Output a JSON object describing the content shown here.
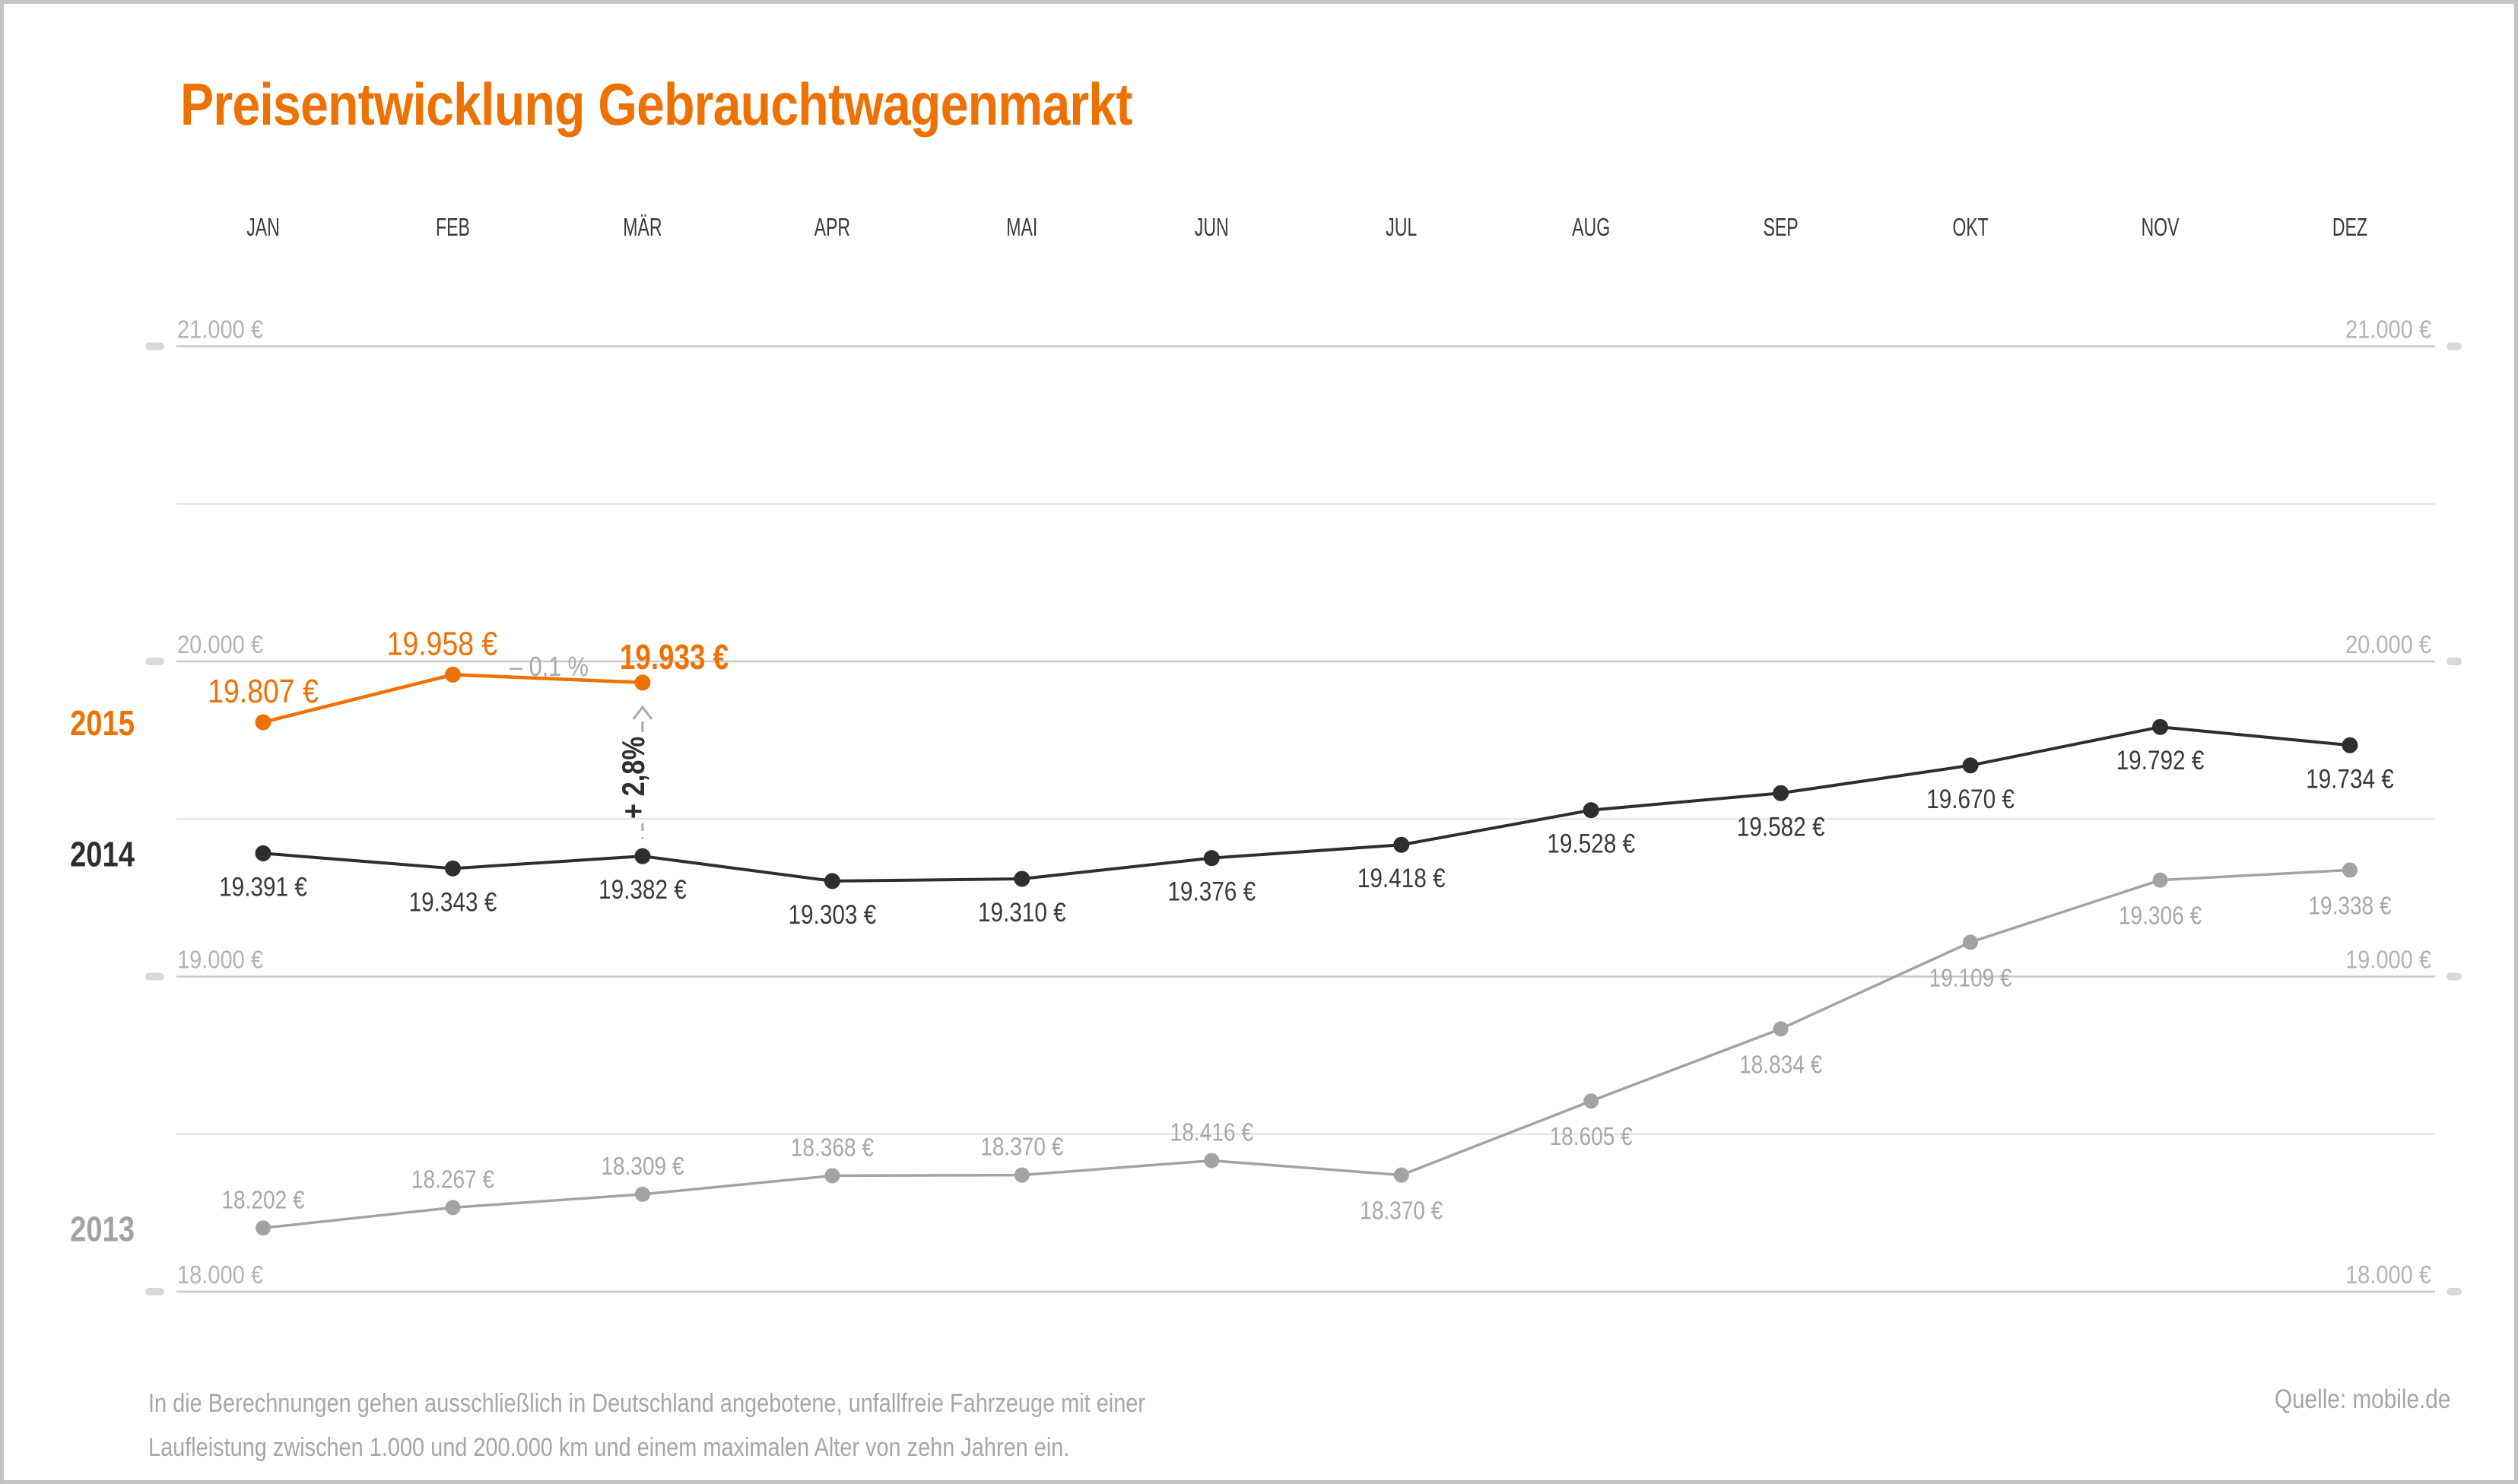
{
  "title": "Preisentwicklung Gebrauchtwagenmarkt",
  "source": "Quelle: mobile.de",
  "footnote": {
    "line1": "In die Berechnungen gehen ausschließlich in Deutschland angebotene, unfallfreie Fahrzeuge mit einer",
    "line2": "Laufleistung zwischen 1.000 und 200.000 km und einem maximalen Alter von zehn Jahren ein."
  },
  "colors": {
    "accent_orange": "#ee7203",
    "series_2014_dark": "#2e2e2e",
    "series_2014_label": "#3a3a3a",
    "series_2013_gray": "#a3a3a3",
    "series_2013_label": "#a7a7a7",
    "grid_major": "#c8c8c8",
    "grid_minor": "#e3e3e3",
    "axis_tick": "#d9d9d9",
    "axis_label": "#b3b3b3",
    "month_label": "#3a3a3a",
    "annotation_gray": "#a9a9a9",
    "footnote_gray": "#a6a6a6",
    "frame_border": "#c3c3c3",
    "background": "#ffffff"
  },
  "chart_data": {
    "type": "line",
    "title": "Preisentwicklung Gebrauchtwagenmarkt",
    "unit": "€",
    "categories": [
      "JAN",
      "FEB",
      "MÄR",
      "APR",
      "MAI",
      "JUN",
      "JUL",
      "AUG",
      "SEP",
      "OKT",
      "NOV",
      "DEZ"
    ],
    "y_axis": {
      "range": [
        18000,
        21000
      ],
      "ticks": [
        {
          "value": 21000,
          "label": "21.000 €"
        },
        {
          "value": 20000,
          "label": "20.000 €"
        },
        {
          "value": 19000,
          "label": "19.000 €"
        },
        {
          "value": 18000,
          "label": "18.000 €"
        }
      ],
      "minor_gridlines": [
        20500,
        19500,
        18500
      ],
      "labels_on_both_sides": true
    },
    "legend_position": "left-of-first-point",
    "series": [
      {
        "name": "2013",
        "color": "#a3a3a3",
        "label_color": "#a7a7a7",
        "values": [
          18202,
          18267,
          18309,
          18368,
          18370,
          18416,
          18370,
          18605,
          18834,
          19109,
          19306,
          19338
        ],
        "labels": [
          "18.202 €",
          "18.267 €",
          "18.309 €",
          "18.368 €",
          "18.370 €",
          "18.416 €",
          "18.370 €",
          "18.605 €",
          "18.834 €",
          "19.109 €",
          "19.306 €",
          "19.338 €"
        ],
        "label_side": [
          "above",
          "above",
          "above",
          "above",
          "above",
          "above",
          "below",
          "below",
          "below",
          "below",
          "below",
          "below"
        ],
        "label_bold": [
          false,
          false,
          false,
          false,
          false,
          false,
          false,
          false,
          false,
          false,
          false,
          false
        ]
      },
      {
        "name": "2014",
        "color": "#2e2e2e",
        "label_color": "#3a3a3a",
        "values": [
          19391,
          19343,
          19382,
          19303,
          19310,
          19376,
          19418,
          19528,
          19582,
          19670,
          19792,
          19734
        ],
        "labels": [
          "19.391 €",
          "19.343 €",
          "19.382 €",
          "19.303 €",
          "19.310 €",
          "19.376 €",
          "19.418 €",
          "19.528 €",
          "19.582 €",
          "19.670 €",
          "19.792 €",
          "19.734 €"
        ],
        "label_side": [
          "below",
          "below",
          "below",
          "below",
          "below",
          "below",
          "below",
          "below",
          "below",
          "below",
          "below",
          "below"
        ],
        "label_bold": [
          false,
          false,
          false,
          false,
          false,
          false,
          false,
          false,
          false,
          false,
          false,
          false
        ]
      },
      {
        "name": "2015",
        "color": "#ee7203",
        "label_color": "#ee7203",
        "values": [
          19807,
          19958,
          19933
        ],
        "labels": [
          "19.807 €",
          "19.958 €",
          "19.933 €"
        ],
        "label_side": [
          "above",
          "above",
          "above-start"
        ],
        "label_bold": [
          false,
          false,
          true
        ]
      }
    ],
    "annotations": [
      {
        "id": "month-over-month-change",
        "text": "– 0,1 %",
        "between": [
          "FEB",
          "MÄR"
        ],
        "series": "2015"
      },
      {
        "id": "year-over-year-change",
        "text": "+ 2,8%",
        "from": {
          "series": "2014",
          "category": "MÄR"
        },
        "to": {
          "series": "2015",
          "category": "MÄR"
        },
        "style": "vertical-dashed-arrow"
      }
    ]
  }
}
